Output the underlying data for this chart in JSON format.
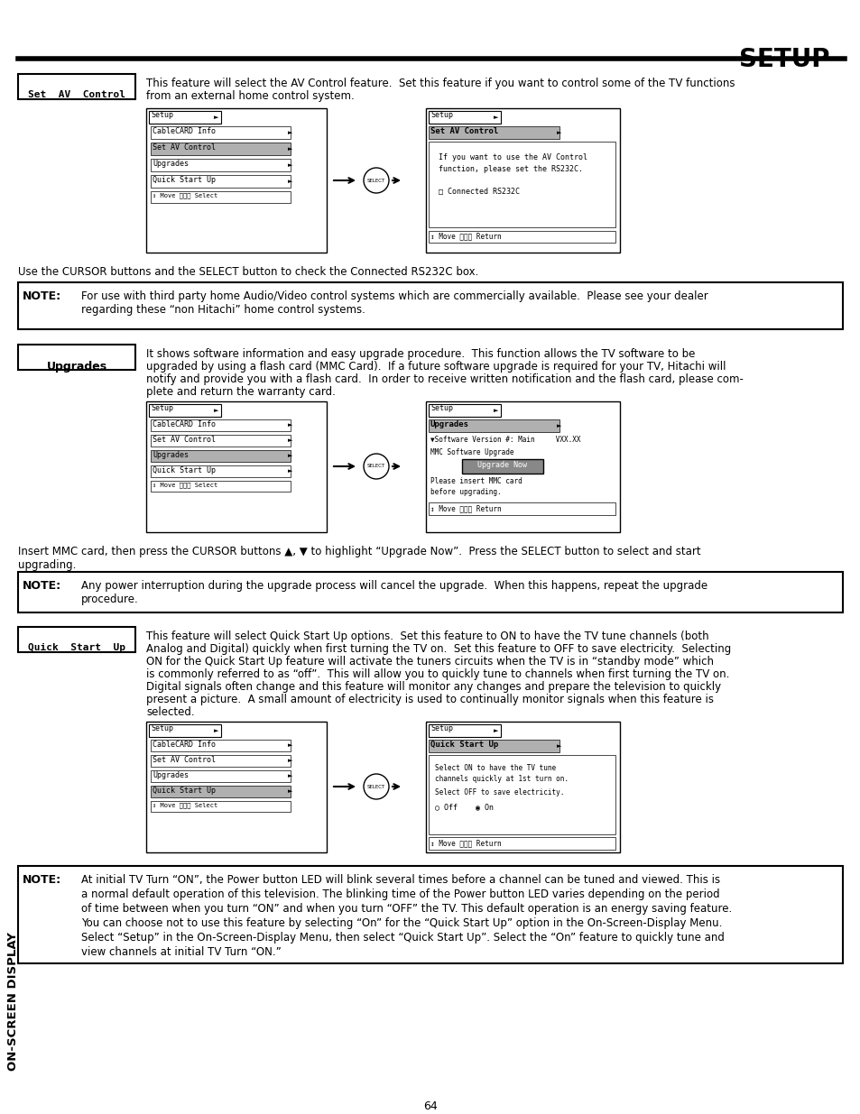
{
  "title": "SETUP",
  "page_number": "64",
  "sidebar_text": "ON-SCREEN DISPLAY",
  "section1_label": "Set  AV  Control",
  "section1_desc1": "This feature will select the AV Control feature.  Set this feature if you want to control some of the TV functions",
  "section1_desc2": "from an external home control system.",
  "section1_cursor_text": "Use the CURSOR buttons and the SELECT button to check the Connected RS232C box.",
  "note1_label": "NOTE:",
  "note1_text1": "For use with third party home Audio/Video control systems which are commercially available.  Please see your dealer",
  "note1_text2": "regarding these “non Hitachi” home control systems.",
  "section2_label": "Upgrades",
  "section2_desc1": "It shows software information and easy upgrade procedure.  This function allows the TV software to be",
  "section2_desc2": "upgraded by using a flash card (MMC Card).  If a future software upgrade is required for your TV, Hitachi will",
  "section2_desc3": "notify and provide you with a flash card.  In order to receive written notification and the flash card, please com-",
  "section2_desc4": "plete and return the warranty card.",
  "note2_label": "NOTE:",
  "note2_text1": "Any power interruption during the upgrade process will cancel the upgrade.  When this happens, repeat the upgrade",
  "note2_text2": "procedure.",
  "section3_label": "Quick  Start  Up",
  "section3_desc1": "This feature will select Quick Start Up options.  Set this feature to ON to have the TV tune channels (both",
  "section3_desc2": "Analog and Digital) quickly when first turning the TV on.  Set this feature to OFF to save electricity.  Selecting",
  "section3_desc3": "ON for the Quick Start Up feature will activate the tuners circuits when the TV is in “standby mode” which",
  "section3_desc4": "is commonly referred to as “off”.  This will allow you to quickly tune to channels when first turning the TV on.",
  "section3_desc5": "Digital signals often change and this feature will monitor any changes and prepare the television to quickly",
  "section3_desc6": "present a picture.  A small amount of electricity is used to continually monitor signals when this feature is",
  "section3_desc7": "selected.",
  "note3_label": "NOTE:",
  "note3_text1": "At initial TV Turn “ON”, the Power button LED will blink several times before a channel can be tuned and viewed. This is",
  "note3_text2": "a normal default operation of this television. The blinking time of the Power button LED varies depending on the period",
  "note3_text3": "of time between when you turn “ON” and when you turn “OFF” the TV. This default operation is an energy saving feature.",
  "note3_text4": "You can choose not to use this feature by selecting “On” for the “Quick Start Up” option in the On-Screen-Display Menu.",
  "note3_text5": "Select “Setup” in the On-Screen-Display Menu, then select “Quick Start Up”. Select the “On” feature to quickly tune and",
  "note3_text6": "view channels at initial TV Turn “ON.”",
  "menu_items": [
    "CableCARD Info",
    "Set AV Control",
    "Upgrades",
    "Quick Start Up"
  ]
}
